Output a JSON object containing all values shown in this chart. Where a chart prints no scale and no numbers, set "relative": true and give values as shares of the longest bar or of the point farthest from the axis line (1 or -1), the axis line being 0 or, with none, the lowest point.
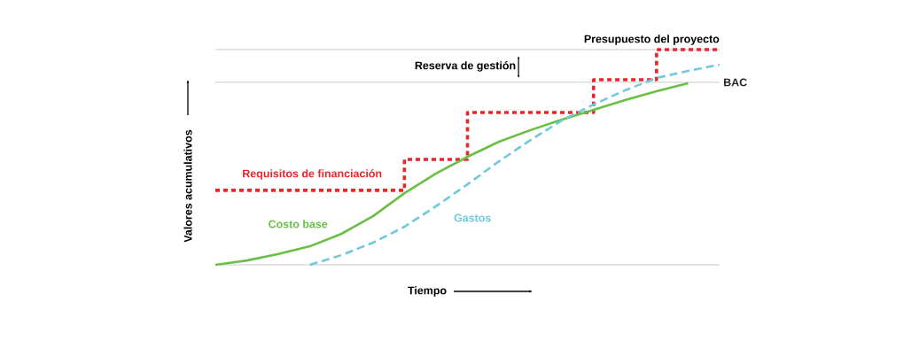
{
  "chart_data": {
    "type": "line",
    "relative": true,
    "xlabel": "Tiempo",
    "ylabel": "Valores acumulativos",
    "categories": [
      null,
      null,
      null,
      null,
      null,
      null,
      null,
      null,
      null,
      null,
      null,
      null,
      null,
      null,
      null,
      null,
      null
    ],
    "series": [
      {
        "name": "Requisitos de financiación",
        "type": "step",
        "color": "#e8262c",
        "line_style": "dotted",
        "values": [
          0.346,
          0.346,
          0.346,
          0.346,
          0.346,
          0.346,
          0.49,
          0.49,
          0.708,
          0.708,
          0.708,
          0.708,
          0.86,
          0.86,
          1.0,
          1.0,
          1.0
        ]
      },
      {
        "name": "Costo base",
        "color": "#6abf45",
        "line_style": "solid",
        "values": [
          0,
          0.02,
          0.05,
          0.086,
          0.144,
          0.226,
          0.333,
          0.424,
          0.502,
          0.572,
          0.626,
          0.675,
          0.72,
          0.765,
          0.807,
          0.844,
          null
        ]
      },
      {
        "name": "Gastos",
        "color": "#6ecadc",
        "line_style": "dashed",
        "values": [
          null,
          null,
          null,
          0,
          0.045,
          0.103,
          0.177,
          0.272,
          0.374,
          0.481,
          0.58,
          0.671,
          0.745,
          0.811,
          0.868,
          0.901,
          0.93
        ]
      }
    ],
    "ref_lines": [
      {
        "axis": "y",
        "value": 1.0,
        "label": "Presupuesto del proyecto",
        "color": "#c8c8c8"
      },
      {
        "axis": "y",
        "value": 0.848,
        "label": "BAC",
        "color": "#c8c8c8"
      }
    ],
    "annotations": [
      "Reserva de gestión"
    ],
    "legend": false,
    "marker": "none"
  }
}
